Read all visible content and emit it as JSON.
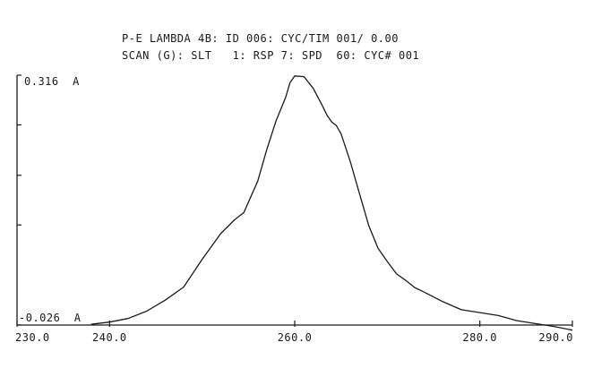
{
  "header": {
    "line1": "P-E LAMBDA 4B: ID 006: CYC/TIM 001/ 0.00",
    "line2": "SCAN (G): SLT   1: RSP 7: SPD  60: CYC# 001"
  },
  "chart_data": {
    "type": "line",
    "title": "",
    "xlabel": "",
    "ylabel": "",
    "xlim": [
      230.0,
      290.0
    ],
    "ylim": [
      -0.026,
      0.316
    ],
    "y_top_label": "0.316  A",
    "y_bottom_label": "-0.026  A",
    "x_tick_labels": [
      {
        "value": 230.0,
        "label": "230.0"
      },
      {
        "value": 240.0,
        "label": "240.0"
      },
      {
        "value": 260.0,
        "label": "260.0"
      },
      {
        "value": 280.0,
        "label": "280.0"
      },
      {
        "value": 290.0,
        "label": "290.0"
      }
    ],
    "y_ticks": [
      0.316,
      0.248,
      0.179,
      0.111,
      -0.026
    ],
    "grid": false,
    "series": [
      {
        "x": [
          238.0,
          240.0,
          242.0,
          244.0,
          246.0,
          248.0,
          250.0,
          252.0,
          253.5,
          254.5,
          256.0,
          257.0,
          258.0,
          259.0,
          259.5,
          260.0,
          261.0,
          262.0,
          263.0,
          263.5,
          264.0,
          264.5,
          265.0,
          266.0,
          267.0,
          268.0,
          269.0,
          270.0,
          271.0,
          272.0,
          273.0,
          274.0,
          276.0,
          278.0,
          280.0,
          282.0,
          284.0,
          286.0,
          288.0,
          290.0
        ],
        "y": [
          -0.025,
          -0.022,
          -0.017,
          -0.007,
          0.008,
          0.026,
          0.064,
          0.099,
          0.118,
          0.128,
          0.171,
          0.215,
          0.254,
          0.285,
          0.306,
          0.315,
          0.314,
          0.298,
          0.274,
          0.261,
          0.252,
          0.247,
          0.236,
          0.198,
          0.154,
          0.11,
          0.079,
          0.061,
          0.044,
          0.035,
          0.025,
          0.019,
          0.006,
          -0.005,
          -0.009,
          -0.013,
          -0.02,
          -0.024,
          -0.028,
          -0.033
        ]
      }
    ]
  }
}
